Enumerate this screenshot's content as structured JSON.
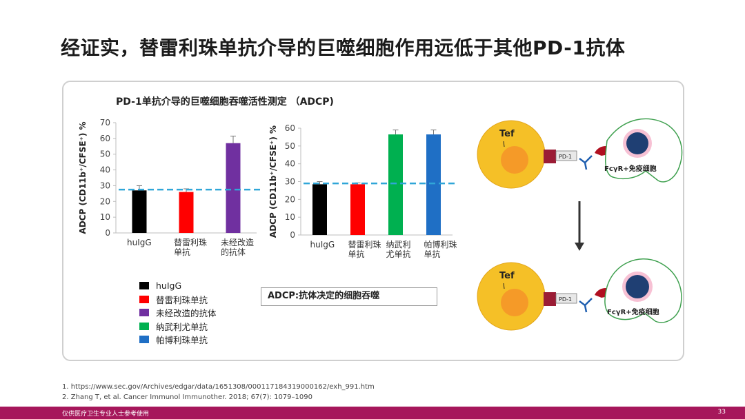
{
  "slide": {
    "title": "经证实，替雷利珠单抗介导的巨噬细胞作用远低于其他PD-1抗体",
    "page_number": "33",
    "footer_text": "仅供医疗卫生专业人士参考使用"
  },
  "references": [
    "1.   https://www.sec.gov/Archives/edgar/data/1651308/000117184319000162/exh_991.htm",
    "2.   Zhang T, et al. Cancer Immunol Immunother. 2018; 67(7): 1079–1090"
  ],
  "adcp_definition": "ADCP:抗体决定的细胞吞噬",
  "legend": [
    {
      "label": "huIgG",
      "color": "#000000"
    },
    {
      "label": "替雷利珠单抗",
      "color": "#ff0000"
    },
    {
      "label": "未经改造的抗体",
      "color": "#7030a0"
    },
    {
      "label": "纳武利尤单抗",
      "color": "#00b050"
    },
    {
      "label": "帕博利珠单抗",
      "color": "#1f6fc5"
    }
  ],
  "diagram": {
    "cell_label": "Tef",
    "receptor_label": "PD-1",
    "immune_label": "FcγR+免疫细胞"
  },
  "chart_data": [
    {
      "type": "bar",
      "title": "PD-1单抗介导的巨噬细胞吞噬活性测定 （ADCP)",
      "ylabel": "ADCP (CD11b⁺/CFSE⁺) %",
      "ylim": [
        0,
        70
      ],
      "yticks": [
        0,
        10,
        20,
        30,
        40,
        50,
        60,
        70
      ],
      "categories": [
        [
          "huIgG"
        ],
        [
          "替雷利珠",
          "单抗"
        ],
        [
          "未经改造",
          "的抗体"
        ]
      ],
      "values": [
        27,
        26,
        57
      ],
      "errors": [
        3,
        2,
        4.5
      ],
      "colors": [
        "#000000",
        "#ff0000",
        "#7030a0"
      ],
      "reference_line": 27.5
    },
    {
      "type": "bar",
      "ylabel": "ADCP (CD11b⁺/CFSE⁺) %",
      "ylim": [
        0,
        60
      ],
      "yticks": [
        0,
        10,
        20,
        30,
        40,
        50,
        60
      ],
      "categories": [
        [
          "huIgG"
        ],
        [
          "替雷利珠",
          "单抗"
        ],
        [
          "纳武利",
          "尤单抗"
        ],
        [
          "帕博利珠",
          "单抗"
        ]
      ],
      "values": [
        28.5,
        28.5,
        56.5,
        56.5
      ],
      "errors": [
        1.5,
        0.8,
        2.5,
        2.5
      ],
      "colors": [
        "#000000",
        "#ff0000",
        "#00b050",
        "#1f6fc5"
      ],
      "reference_line": 29
    }
  ]
}
